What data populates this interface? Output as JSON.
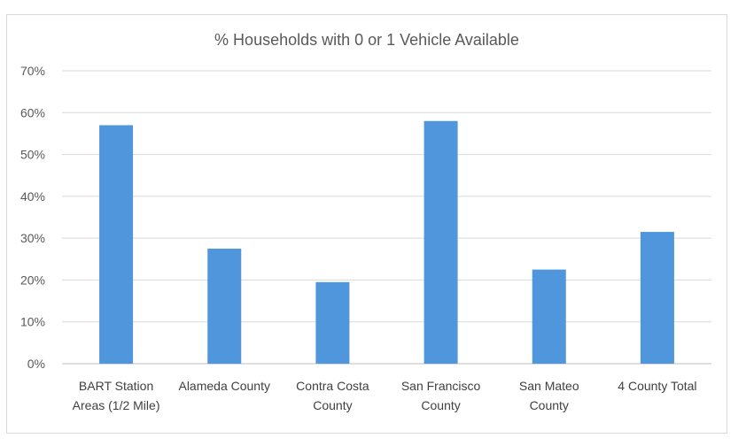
{
  "chart_data": {
    "type": "bar",
    "title": "% Households with 0 or 1 Vehicle Available",
    "xlabel": "",
    "ylabel": "",
    "categories": [
      [
        "BART Station",
        "Areas (1/2 Mile)"
      ],
      [
        "Alameda County"
      ],
      [
        "Contra Costa",
        "County"
      ],
      [
        "San Francisco",
        "County"
      ],
      [
        "San Mateo",
        "County"
      ],
      [
        "4 County Total"
      ]
    ],
    "values": [
      57,
      27.5,
      19.5,
      58,
      22.5,
      31.5
    ],
    "value_unit": "%",
    "ylim": [
      0,
      70
    ],
    "yticks": [
      0,
      10,
      20,
      30,
      40,
      50,
      60,
      70
    ],
    "ytick_labels": [
      "0%",
      "10%",
      "20%",
      "30%",
      "40%",
      "50%",
      "60%",
      "70%"
    ],
    "grid": true,
    "legend": "none",
    "bar_color": "#4f96dc"
  }
}
